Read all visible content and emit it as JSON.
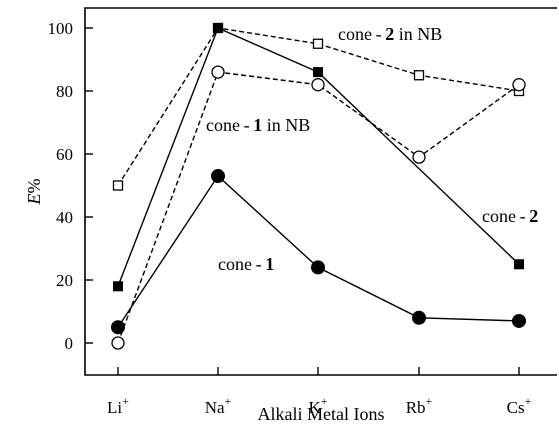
{
  "chart_data": {
    "type": "line",
    "title": "",
    "xlabel": "Alkali Metal Ions",
    "ylabel": "E%",
    "categories": [
      "Li+",
      "Na+",
      "K+",
      "Rb+",
      "Cs+"
    ],
    "ylim": [
      -4,
      105
    ],
    "yticks": [
      0,
      20,
      40,
      60,
      80,
      100
    ],
    "grid": false,
    "series": [
      {
        "name": "cone-2 in NB",
        "style": "dashed",
        "marker": "open-square",
        "values": [
          50,
          100,
          95,
          85,
          80
        ]
      },
      {
        "name": "cone-1 in NB",
        "style": "dashed",
        "marker": "open-circle",
        "values": [
          0,
          86,
          82,
          59,
          82
        ]
      },
      {
        "name": "cone-2",
        "style": "solid",
        "marker": "filled-square",
        "values": [
          18,
          100,
          86,
          null,
          25
        ]
      },
      {
        "name": "cone-1",
        "style": "solid",
        "marker": "filled-circle",
        "values": [
          5,
          53,
          24,
          8,
          7
        ]
      }
    ],
    "annotations": [
      {
        "prefix": "cone - ",
        "num": "2",
        "suffix": "  in  NB"
      },
      {
        "prefix": "cone - ",
        "num": "1",
        "suffix": "  in  NB"
      },
      {
        "prefix": "cone - ",
        "num": "2",
        "suffix": ""
      },
      {
        "prefix": "cone - ",
        "num": "1",
        "suffix": ""
      }
    ]
  }
}
